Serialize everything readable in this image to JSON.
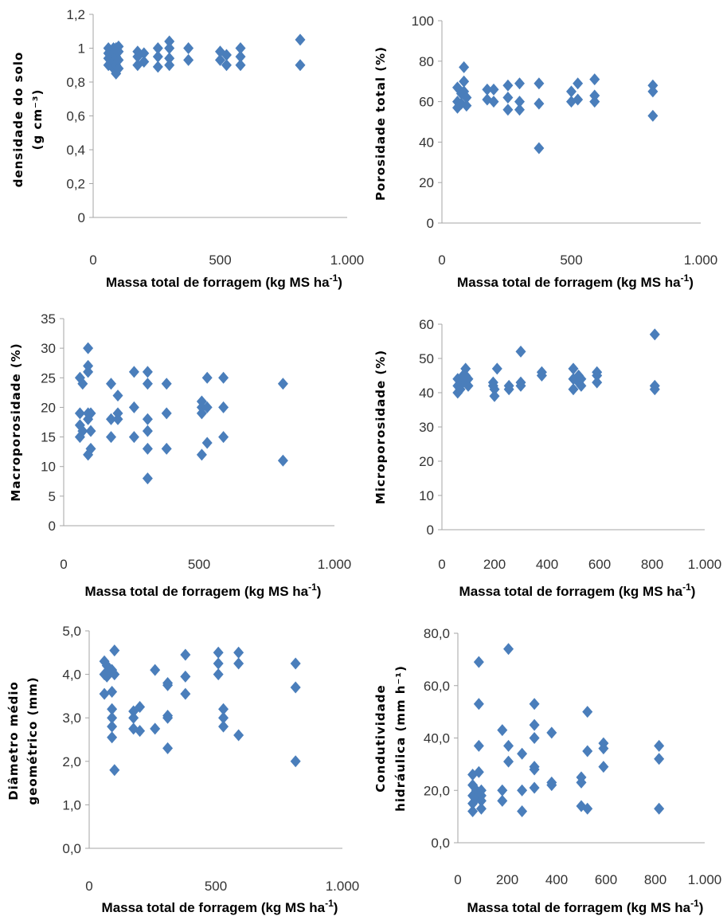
{
  "chart_data": [
    {
      "type": "scatter",
      "ylabel": [
        "densidade do solo",
        "(g cm⁻³)"
      ],
      "xlabel": "Massa total de forragem (kg MS ha-1)",
      "xticks": [
        "0",
        "500",
        "1.000"
      ],
      "xlim": [
        0,
        1000
      ],
      "yticks": [
        "0",
        "0,2",
        "0,4",
        "0,6",
        "0,8",
        "1",
        "1,2"
      ],
      "ylim": [
        0,
        1.2
      ],
      "grid": false,
      "points": [
        [
          60,
          1.0
        ],
        [
          60,
          0.97
        ],
        [
          60,
          0.94
        ],
        [
          60,
          0.9
        ],
        [
          80,
          1.0
        ],
        [
          80,
          0.96
        ],
        [
          80,
          0.92
        ],
        [
          80,
          0.88
        ],
        [
          90,
          1.0
        ],
        [
          90,
          0.95
        ],
        [
          90,
          0.9
        ],
        [
          90,
          0.85
        ],
        [
          100,
          1.01
        ],
        [
          100,
          0.98
        ],
        [
          100,
          0.93
        ],
        [
          100,
          0.88
        ],
        [
          175,
          0.98
        ],
        [
          175,
          0.95
        ],
        [
          175,
          0.9
        ],
        [
          200,
          0.97
        ],
        [
          200,
          0.92
        ],
        [
          255,
          1.0
        ],
        [
          255,
          0.95
        ],
        [
          255,
          0.89
        ],
        [
          300,
          1.04
        ],
        [
          300,
          1.0
        ],
        [
          300,
          0.94
        ],
        [
          300,
          0.9
        ],
        [
          375,
          1.0
        ],
        [
          375,
          0.93
        ],
        [
          500,
          0.98
        ],
        [
          500,
          0.93
        ],
        [
          525,
          0.96
        ],
        [
          525,
          0.9
        ],
        [
          580,
          1.0
        ],
        [
          580,
          0.95
        ],
        [
          580,
          0.9
        ],
        [
          815,
          1.05
        ],
        [
          815,
          0.9
        ]
      ]
    },
    {
      "type": "scatter",
      "ylabel": [
        "Porosidade total (%)"
      ],
      "xlabel": "Massa total de forragem (kg MS ha-1)",
      "xticks": [
        "0",
        "500",
        "1.000"
      ],
      "xlim": [
        0,
        1000
      ],
      "yticks": [
        "0",
        "20",
        "40",
        "60",
        "80",
        "100"
      ],
      "ylim": [
        0,
        100
      ],
      "grid": false,
      "points": [
        [
          60,
          67
        ],
        [
          60,
          60
        ],
        [
          60,
          57
        ],
        [
          75,
          64
        ],
        [
          75,
          59
        ],
        [
          85,
          77
        ],
        [
          85,
          70
        ],
        [
          85,
          65
        ],
        [
          95,
          62
        ],
        [
          95,
          58
        ],
        [
          175,
          66
        ],
        [
          175,
          61
        ],
        [
          200,
          66
        ],
        [
          200,
          60
        ],
        [
          255,
          68
        ],
        [
          255,
          62
        ],
        [
          255,
          56
        ],
        [
          300,
          69
        ],
        [
          300,
          60
        ],
        [
          300,
          56
        ],
        [
          375,
          69
        ],
        [
          375,
          59
        ],
        [
          375,
          37
        ],
        [
          500,
          65
        ],
        [
          500,
          60
        ],
        [
          525,
          69
        ],
        [
          525,
          61
        ],
        [
          590,
          71
        ],
        [
          590,
          63
        ],
        [
          590,
          60
        ],
        [
          815,
          68
        ],
        [
          815,
          65
        ],
        [
          815,
          53
        ]
      ]
    },
    {
      "type": "scatter",
      "ylabel": [
        "Macroporosidade (%)"
      ],
      "xlabel": "Massa total de forragem (kg MS ha-1)",
      "xticks": [
        "0",
        "500",
        "1.000"
      ],
      "xlim": [
        0,
        1000
      ],
      "yticks": [
        "0",
        "5",
        "10",
        "15",
        "20",
        "25",
        "30",
        "35"
      ],
      "ylim": [
        0,
        35
      ],
      "grid": false,
      "points": [
        [
          60,
          25
        ],
        [
          60,
          19
        ],
        [
          60,
          17
        ],
        [
          60,
          15
        ],
        [
          70,
          24
        ],
        [
          70,
          16
        ],
        [
          90,
          30
        ],
        [
          90,
          27
        ],
        [
          90,
          26
        ],
        [
          90,
          19
        ],
        [
          90,
          18
        ],
        [
          90,
          12
        ],
        [
          100,
          19
        ],
        [
          100,
          16
        ],
        [
          100,
          13
        ],
        [
          175,
          24
        ],
        [
          175,
          18
        ],
        [
          175,
          15
        ],
        [
          200,
          22
        ],
        [
          200,
          19
        ],
        [
          200,
          18
        ],
        [
          260,
          26
        ],
        [
          260,
          20
        ],
        [
          260,
          15
        ],
        [
          310,
          26
        ],
        [
          310,
          24
        ],
        [
          310,
          18
        ],
        [
          310,
          16
        ],
        [
          310,
          13
        ],
        [
          310,
          8
        ],
        [
          380,
          24
        ],
        [
          380,
          19
        ],
        [
          380,
          13
        ],
        [
          510,
          21
        ],
        [
          510,
          20
        ],
        [
          510,
          19
        ],
        [
          510,
          12
        ],
        [
          530,
          25
        ],
        [
          530,
          20
        ],
        [
          530,
          14
        ],
        [
          590,
          25
        ],
        [
          590,
          20
        ],
        [
          590,
          15
        ],
        [
          810,
          24
        ],
        [
          810,
          11
        ]
      ]
    },
    {
      "type": "scatter",
      "ylabel": [
        "Microporosidade (%)"
      ],
      "xlabel": "Massa total de forragem (kg MS ha-1)",
      "xticks": [
        "0",
        "200",
        "400",
        "600",
        "800",
        "1.000"
      ],
      "xlim": [
        0,
        1000
      ],
      "yticks": [
        "0",
        "10",
        "20",
        "30",
        "40",
        "50",
        "60"
      ],
      "ylim": [
        0,
        60
      ],
      "grid": false,
      "points": [
        [
          60,
          44
        ],
        [
          60,
          42
        ],
        [
          60,
          40
        ],
        [
          70,
          43
        ],
        [
          70,
          41
        ],
        [
          80,
          45
        ],
        [
          80,
          43
        ],
        [
          90,
          47
        ],
        [
          90,
          45
        ],
        [
          90,
          43
        ],
        [
          100,
          44
        ],
        [
          100,
          42
        ],
        [
          195,
          43
        ],
        [
          195,
          42
        ],
        [
          200,
          41
        ],
        [
          200,
          39
        ],
        [
          210,
          47
        ],
        [
          255,
          42
        ],
        [
          255,
          41
        ],
        [
          300,
          52
        ],
        [
          300,
          43
        ],
        [
          300,
          42
        ],
        [
          380,
          46
        ],
        [
          380,
          45
        ],
        [
          500,
          47
        ],
        [
          500,
          44
        ],
        [
          500,
          41
        ],
        [
          520,
          45
        ],
        [
          520,
          43
        ],
        [
          530,
          44
        ],
        [
          530,
          42
        ],
        [
          590,
          46
        ],
        [
          590,
          45
        ],
        [
          590,
          43
        ],
        [
          810,
          57
        ],
        [
          810,
          42
        ],
        [
          810,
          41
        ]
      ]
    },
    {
      "type": "scatter",
      "ylabel": [
        "Diâmetro médio",
        "geométrico (mm)"
      ],
      "xlabel": "Massa total de forragem (kg MS ha-1)",
      "xticks": [
        "0",
        "500",
        "1.000"
      ],
      "xlim": [
        0,
        1000
      ],
      "yticks": [
        "0,0",
        "1,0",
        "2,0",
        "3,0",
        "4,0",
        "5,0"
      ],
      "ylim": [
        0,
        5
      ],
      "grid": false,
      "points": [
        [
          60,
          4.3
        ],
        [
          60,
          4.0
        ],
        [
          60,
          3.55
        ],
        [
          70,
          4.2
        ],
        [
          70,
          3.95
        ],
        [
          80,
          4.1
        ],
        [
          90,
          4.1
        ],
        [
          90,
          3.6
        ],
        [
          90,
          3.2
        ],
        [
          90,
          3.0
        ],
        [
          90,
          2.8
        ],
        [
          90,
          2.55
        ],
        [
          100,
          4.55
        ],
        [
          100,
          4.0
        ],
        [
          100,
          1.8
        ],
        [
          175,
          3.15
        ],
        [
          175,
          3.0
        ],
        [
          175,
          2.75
        ],
        [
          200,
          3.25
        ],
        [
          200,
          2.7
        ],
        [
          260,
          4.1
        ],
        [
          260,
          2.75
        ],
        [
          310,
          3.8
        ],
        [
          310,
          3.75
        ],
        [
          310,
          3.05
        ],
        [
          310,
          3.0
        ],
        [
          310,
          2.3
        ],
        [
          380,
          4.45
        ],
        [
          380,
          3.95
        ],
        [
          380,
          3.55
        ],
        [
          510,
          4.5
        ],
        [
          510,
          4.25
        ],
        [
          510,
          4.0
        ],
        [
          530,
          3.2
        ],
        [
          530,
          3.0
        ],
        [
          530,
          2.8
        ],
        [
          590,
          4.5
        ],
        [
          590,
          4.25
        ],
        [
          590,
          2.6
        ],
        [
          815,
          4.25
        ],
        [
          815,
          3.7
        ],
        [
          815,
          2.0
        ]
      ]
    },
    {
      "type": "scatter",
      "ylabel": [
        "Condutividade",
        "hidráulica (mm h⁻¹)"
      ],
      "xlabel": "Massa total de forragem (kg MS ha-1)",
      "xticks": [
        "0",
        "200",
        "400",
        "600",
        "800",
        "1.000"
      ],
      "xlim": [
        0,
        1000
      ],
      "yticks": [
        "0,0",
        "20,0",
        "40,0",
        "60,0",
        "80,0"
      ],
      "ylim": [
        0,
        80
      ],
      "grid": false,
      "points": [
        [
          60,
          26
        ],
        [
          60,
          22
        ],
        [
          60,
          18
        ],
        [
          60,
          15
        ],
        [
          60,
          12
        ],
        [
          75,
          20
        ],
        [
          75,
          17
        ],
        [
          85,
          69
        ],
        [
          85,
          53
        ],
        [
          85,
          37
        ],
        [
          85,
          27
        ],
        [
          95,
          20
        ],
        [
          95,
          18
        ],
        [
          95,
          16
        ],
        [
          95,
          13
        ],
        [
          180,
          43
        ],
        [
          180,
          20
        ],
        [
          180,
          16
        ],
        [
          205,
          74
        ],
        [
          205,
          37
        ],
        [
          205,
          31
        ],
        [
          260,
          34
        ],
        [
          260,
          20
        ],
        [
          260,
          12
        ],
        [
          310,
          53
        ],
        [
          310,
          45
        ],
        [
          310,
          40
        ],
        [
          310,
          29
        ],
        [
          310,
          28
        ],
        [
          310,
          21
        ],
        [
          380,
          42
        ],
        [
          380,
          23
        ],
        [
          380,
          22
        ],
        [
          500,
          25
        ],
        [
          500,
          23
        ],
        [
          500,
          14
        ],
        [
          525,
          50
        ],
        [
          525,
          35
        ],
        [
          525,
          13
        ],
        [
          590,
          38
        ],
        [
          590,
          36
        ],
        [
          590,
          29
        ],
        [
          815,
          37
        ],
        [
          815,
          32
        ],
        [
          815,
          13
        ]
      ]
    }
  ],
  "colors": {
    "marker": "#4a7ebb",
    "axis": "#a6a6a6",
    "text": "#000000"
  }
}
